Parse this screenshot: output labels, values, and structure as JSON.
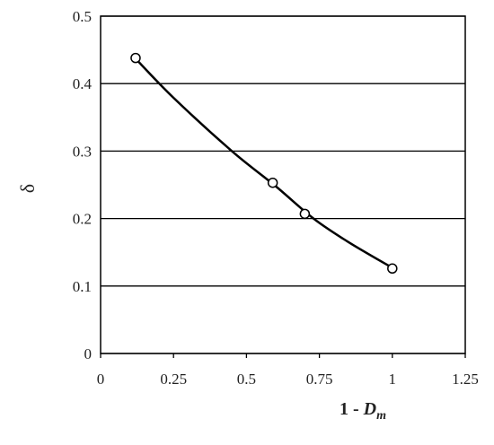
{
  "chart_data": {
    "type": "scatter",
    "xlabel": [
      "1 - ",
      "D",
      "m"
    ],
    "ylabel": "δ",
    "xlim": [
      0,
      1.25
    ],
    "xticks": [
      0,
      0.25,
      0.5,
      0.75,
      1,
      1.25
    ],
    "ylim": [
      0,
      0.5
    ],
    "yticks": [
      0,
      0.1,
      0.2,
      0.3,
      0.4,
      0.5
    ],
    "grid": true,
    "series": [
      {
        "mode": "markers",
        "color": "#000000",
        "x": [
          0.12,
          0.59,
          0.7,
          1.0
        ],
        "values": [
          0.438,
          0.253,
          0.207,
          0.126
        ]
      },
      {
        "mode": "line",
        "color": "#000000",
        "x": [
          0.12,
          0.25,
          0.45,
          0.6,
          0.73,
          0.85,
          1.0
        ],
        "values": [
          0.437,
          0.379,
          0.3,
          0.248,
          0.2,
          0.165,
          0.127
        ]
      }
    ]
  }
}
